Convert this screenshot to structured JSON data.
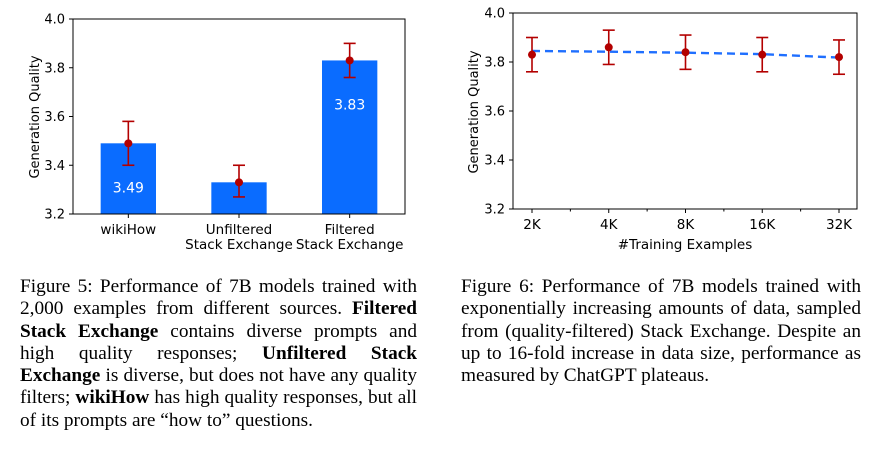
{
  "figures": [
    {
      "caption_parts": [
        "Figure 5: Performance of 7B models trained with 2,000 examples from different sources. ",
        "Filtered Stack Exchange",
        " contains diverse prompts and high quality responses; ",
        "Unfiltered Stack Exchange",
        " is diverse, but does not have any quality filters; ",
        "wikiHow",
        " has high quality responses, but all of its prompts are “how to” questions."
      ]
    },
    {
      "caption": "Figure 6: Performance of 7B models trained with exponentially increasing amounts of data, sampled from (quality-filtered) Stack Exchange. Despite an up to 16-fold increase in data size, performance as measured by ChatGPT plateaus."
    }
  ],
  "chart_data": [
    {
      "type": "bar",
      "categories": [
        [
          "wikiHow"
        ],
        [
          "Unfiltered",
          "Stack Exchange"
        ],
        [
          "Filtered",
          "Stack Exchange"
        ]
      ],
      "values": [
        3.49,
        3.33,
        3.83
      ],
      "data_labels": [
        "3.49",
        "3.33",
        "3.83"
      ],
      "error_low": [
        3.4,
        3.27,
        3.76
      ],
      "error_high": [
        3.58,
        3.4,
        3.9
      ],
      "ylabel": "Generation Quality",
      "xlabel": "",
      "ylim": [
        3.2,
        4.0
      ],
      "yticks": [
        "3.2",
        "3.4",
        "3.6",
        "3.8",
        "4.0"
      ],
      "bar_color": "#0a6cff",
      "marker_color": "#b30000",
      "grid": false
    },
    {
      "type": "line",
      "x": [
        "2K",
        "4K",
        "8K",
        "16K",
        "32K"
      ],
      "values": [
        3.83,
        3.86,
        3.84,
        3.83,
        3.82
      ],
      "error_low": [
        3.76,
        3.79,
        3.77,
        3.76,
        3.75
      ],
      "error_high": [
        3.9,
        3.93,
        3.91,
        3.9,
        3.89
      ],
      "trend": [
        3.845,
        3.842,
        3.838,
        3.832,
        3.818
      ],
      "xlabel": "#Training Examples",
      "ylabel": "Generation Quality",
      "ylim": [
        3.2,
        4.0
      ],
      "yticks": [
        "3.2",
        "3.4",
        "3.6",
        "3.8",
        "4.0"
      ],
      "x_scale": "log2",
      "line_color": "#1f6fff",
      "line_style": "dashed",
      "marker_color": "#b30000",
      "grid": false
    }
  ]
}
